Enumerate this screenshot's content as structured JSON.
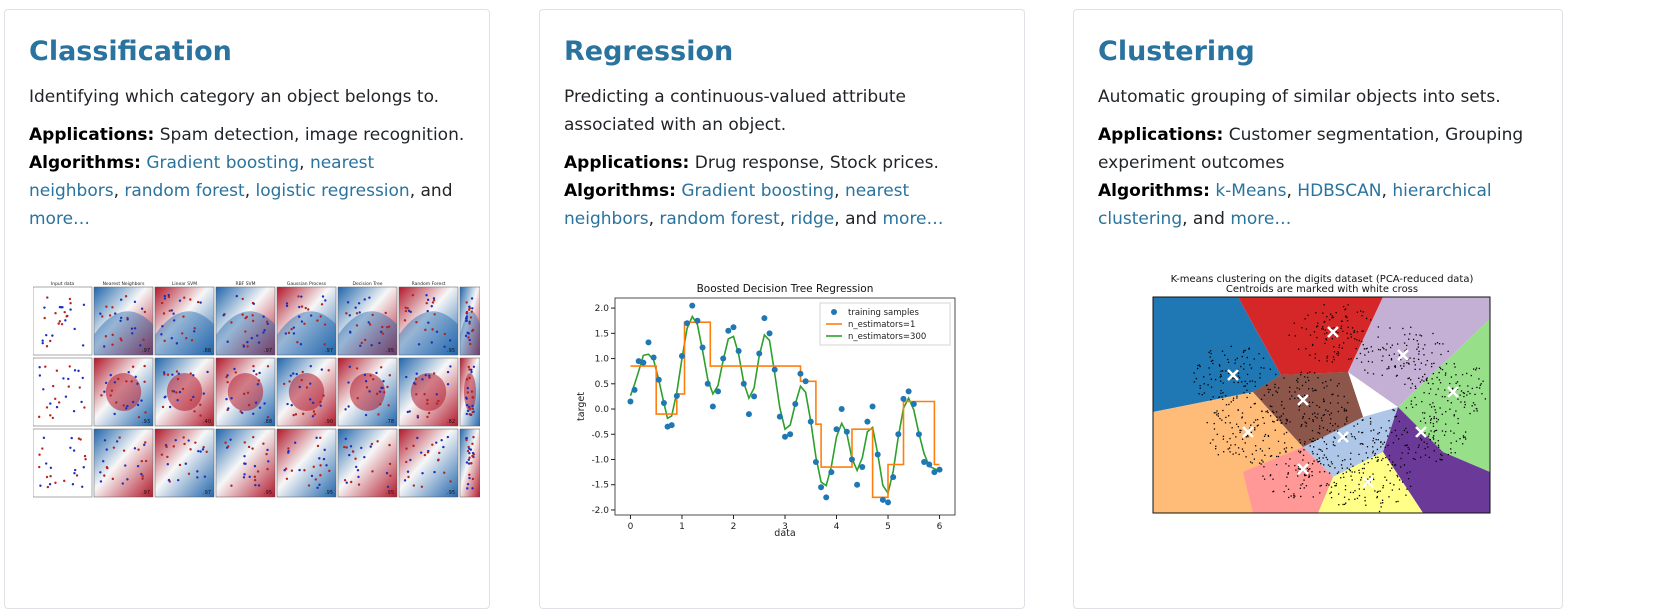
{
  "cards": [
    {
      "title": "Classification",
      "description": "Identifying which category an object belongs to.",
      "applications_label": "Applications:",
      "applications": "Spam detection, image recognition.",
      "algorithms_label": "Algorithms:",
      "links": [
        "Gradient boosting",
        "nearest neighbors",
        "random forest",
        "logistic regression"
      ],
      "and_text": ", and",
      "more": "more…",
      "figure": {
        "column_titles": [
          "Input data",
          "Nearest Neighbors",
          "Linear SVM",
          "RBF SVM",
          "Gaussian Process",
          "Decision Tree",
          "Random Forest",
          "Ne"
        ],
        "scores": [
          [
            "",
            ".97",
            ".88",
            ".97",
            ".97",
            ".95",
            ".95"
          ],
          [
            "",
            ".93",
            ".40",
            ".88",
            ".90",
            ".78",
            ".82"
          ],
          [
            "",
            ".97",
            ".97",
            ".95",
            ".95",
            ".95",
            ".95"
          ]
        ]
      }
    },
    {
      "title": "Regression",
      "description": "Predicting a continuous-valued attribute associated with an object.",
      "applications_label": "Applications:",
      "applications": "Drug response, Stock prices.",
      "algorithms_label": "Algorithms:",
      "links": [
        "Gradient boosting",
        "nearest neighbors",
        "random forest",
        "ridge"
      ],
      "and_text": ", and",
      "more": "more…"
    },
    {
      "title": "Clustering",
      "description": "Automatic grouping of similar objects into sets.",
      "applications_label": "Applications:",
      "applications": "Customer segmentation, Grouping experiment outcomes",
      "algorithms_label": "Algorithms:",
      "links": [
        "k-Means",
        "HDBSCAN",
        "hierarchical clustering"
      ],
      "and_text": ", and",
      "more": "more…",
      "figure": {
        "title_line1": "K-means clustering on the digits dataset (PCA-reduced data)",
        "title_line2": "Centroids are marked with white cross",
        "colors": [
          "#1f77b4",
          "#d62728",
          "#c5b0d5",
          "#aec7e8",
          "#98df8a",
          "#8c564b",
          "#ffbb78",
          "#6b3a98",
          "#ff9896",
          "#ffff88"
        ]
      }
    }
  ],
  "chart_data": {
    "type": "line",
    "title": "Boosted Decision Tree Regression",
    "xlabel": "data",
    "ylabel": "target",
    "xlim": [
      -0.3,
      6.3
    ],
    "ylim": [
      -2.1,
      2.2
    ],
    "xticks": [
      0,
      1,
      2,
      3,
      4,
      5,
      6
    ],
    "yticks": [
      -2.0,
      -1.5,
      -1.0,
      -0.5,
      0.0,
      0.5,
      1.0,
      1.5,
      2.0
    ],
    "legend": {
      "position": "top-right",
      "labels": [
        "training samples",
        "n_estimators=1",
        "n_estimators=300"
      ]
    },
    "colors": {
      "samples": "#1f77b4",
      "n1": "#ff7f0e",
      "n300": "#2ca02c"
    },
    "samples": {
      "x": [
        0.0,
        0.08,
        0.16,
        0.25,
        0.35,
        0.45,
        0.55,
        0.65,
        0.72,
        0.8,
        0.9,
        1.0,
        1.1,
        1.2,
        1.3,
        1.4,
        1.5,
        1.6,
        1.7,
        1.8,
        1.9,
        2.0,
        2.1,
        2.2,
        2.3,
        2.4,
        2.5,
        2.6,
        2.7,
        2.8,
        2.9,
        3.0,
        3.1,
        3.2,
        3.3,
        3.4,
        3.5,
        3.6,
        3.7,
        3.8,
        3.9,
        4.0,
        4.1,
        4.2,
        4.3,
        4.4,
        4.5,
        4.6,
        4.7,
        4.8,
        4.9,
        5.0,
        5.1,
        5.2,
        5.3,
        5.4,
        5.5,
        5.6,
        5.7,
        5.8,
        5.9,
        6.0
      ],
      "y": [
        0.15,
        0.38,
        0.95,
        0.92,
        1.32,
        1.02,
        0.58,
        0.12,
        -0.35,
        -0.32,
        0.26,
        1.05,
        1.7,
        2.05,
        1.75,
        1.22,
        0.5,
        0.05,
        0.35,
        1.0,
        1.55,
        1.62,
        1.15,
        0.5,
        -0.1,
        0.25,
        1.1,
        1.8,
        1.5,
        0.78,
        -0.15,
        -0.55,
        -0.5,
        0.1,
        0.7,
        0.55,
        -0.25,
        -1.05,
        -1.55,
        -1.75,
        -1.25,
        -0.4,
        0.0,
        -0.45,
        -1.0,
        -1.5,
        -1.15,
        -0.25,
        0.05,
        -0.9,
        -1.8,
        -1.85,
        -1.35,
        -0.5,
        0.2,
        0.35,
        0.1,
        -0.5,
        -1.05,
        -1.1,
        -1.25,
        -1.2
      ]
    },
    "n1": {
      "x": [
        0,
        0.5,
        0.5,
        0.9,
        0.9,
        1.05,
        1.05,
        1.55,
        1.55,
        3.3,
        3.3,
        3.6,
        3.6,
        3.7,
        3.7,
        4.3,
        4.3,
        4.7,
        4.7,
        5.0,
        5.0,
        5.3,
        5.3,
        5.9,
        5.9,
        6.0
      ],
      "y": [
        0.85,
        0.85,
        -0.1,
        -0.1,
        0.3,
        0.3,
        1.72,
        1.72,
        0.85,
        0.85,
        0.55,
        0.55,
        -0.3,
        -0.3,
        -1.15,
        -1.15,
        -0.4,
        -0.4,
        -1.75,
        -1.75,
        -1.1,
        -1.1,
        0.15,
        0.15,
        -1.1,
        -1.1
      ]
    }
  }
}
